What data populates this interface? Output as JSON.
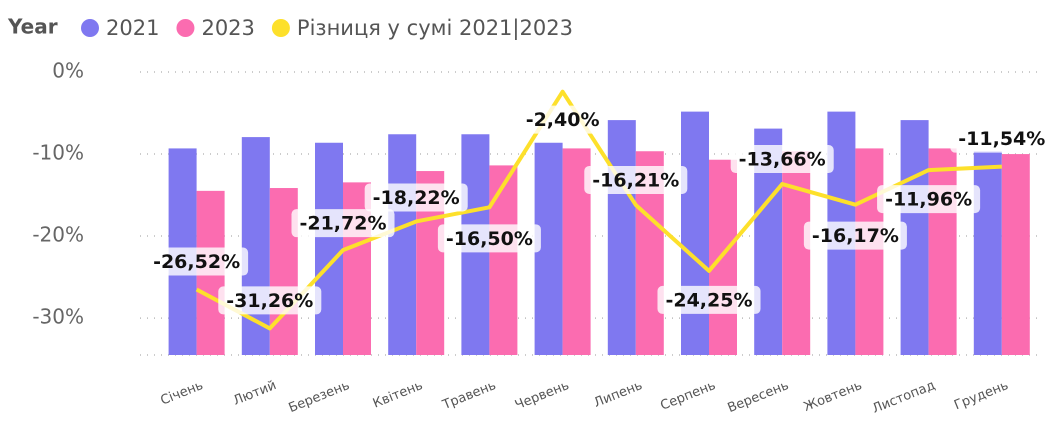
{
  "chart_data": {
    "type": "bar-line",
    "legend_title": "Year",
    "categories": [
      "Січень",
      "Лютий",
      "Березень",
      "Квітень",
      "Травень",
      "Червень",
      "Липень",
      "Серпень",
      "Вересень",
      "Жовтень",
      "Листопад",
      "Грудень"
    ],
    "series": [
      {
        "name": "2021",
        "type": "bar",
        "axis": "y2",
        "color": "#7f78f0",
        "values": [
          73,
          77,
          75,
          78,
          78,
          75,
          83,
          86,
          80,
          86,
          83,
          72
        ]
      },
      {
        "name": "2023",
        "type": "bar",
        "axis": "y2",
        "color": "#fb6cb0",
        "values": [
          58,
          59,
          61,
          65,
          67,
          73,
          72,
          69,
          72,
          73,
          73,
          71
        ]
      },
      {
        "name": "Різниця у сумі 2021|2023",
        "type": "line",
        "color": "#fde02b",
        "values": [
          -26.52,
          -31.26,
          -21.72,
          -18.22,
          -16.5,
          -2.4,
          -16.21,
          -24.25,
          -13.66,
          -16.17,
          -11.96,
          -11.54
        ],
        "value_labels": [
          "-26,52%",
          "-31,26%",
          "-21,72%",
          "-18,22%",
          "-16,50%",
          "-2,40%",
          "-16,21%",
          "-24,25%",
          "-13,66%",
          "-16,17%",
          "-11,96%",
          "-11,54%"
        ]
      }
    ],
    "ylim": [
      -34.5,
      0
    ],
    "yticks": [
      {
        "value": 0,
        "label": "0%"
      },
      {
        "value": -10,
        "label": "-10%"
      },
      {
        "value": -20,
        "label": "-20%"
      },
      {
        "value": -30,
        "label": "-30%"
      }
    ],
    "y2lim": [
      0,
      100
    ],
    "grid": true
  }
}
